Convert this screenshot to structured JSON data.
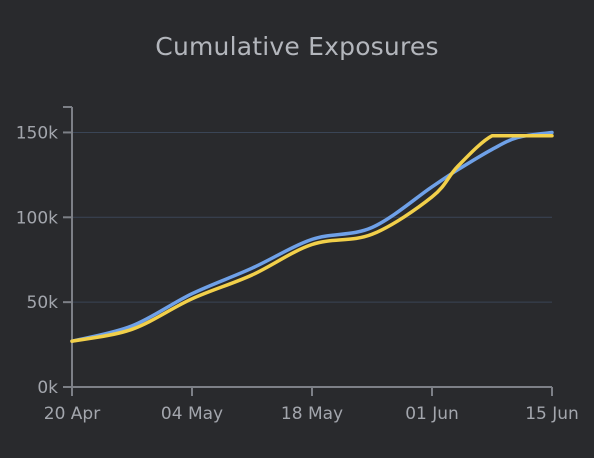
{
  "chart_data": {
    "type": "line",
    "title": "Cumulative Exposures",
    "xlabel": "",
    "ylabel": "",
    "x_dates": [
      "2020-04-20",
      "2020-04-27",
      "2020-05-04",
      "2020-05-11",
      "2020-05-18",
      "2020-05-25",
      "2020-06-01",
      "2020-06-04",
      "2020-06-08",
      "2020-06-11",
      "2020-06-15"
    ],
    "x_ticks": [
      "20 Apr",
      "04 May",
      "18 May",
      "01 Jun",
      "15 Jun"
    ],
    "x_range": [
      "2020-04-20",
      "2020-06-15"
    ],
    "y_ticks": [
      "0k",
      "50k",
      "100k",
      "150k"
    ],
    "ylim": [
      0,
      165000
    ],
    "grid": true,
    "series": [
      {
        "color": "#6fa1e8",
        "values": [
          27000,
          36000,
          55000,
          70000,
          87000,
          94000,
          118000,
          128000,
          140000,
          147000,
          150000
        ]
      },
      {
        "color": "#f2d04a",
        "values": [
          27000,
          34000,
          52000,
          66000,
          84000,
          90000,
          112000,
          130000,
          148000,
          148000,
          148000
        ]
      }
    ]
  }
}
